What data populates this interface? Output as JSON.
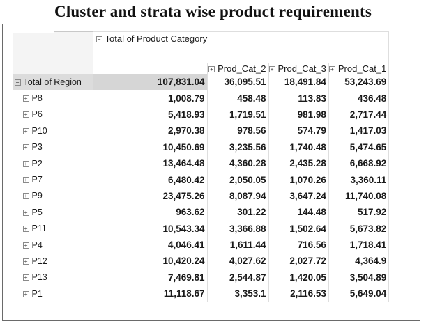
{
  "title": "Cluster and strata wise product requirements",
  "column_field": "Total of Product Category",
  "columns": [
    "Prod_Cat_2",
    "Prod_Cat_3",
    "Prod_Cat_1"
  ],
  "grand_row": {
    "label": "Total of Region",
    "total": "107,831.04",
    "values": [
      "36,095.51",
      "18,491.84",
      "53,243.69"
    ]
  },
  "rows": [
    {
      "label": "P8",
      "total": "1,008.79",
      "values": [
        "458.48",
        "113.83",
        "436.48"
      ]
    },
    {
      "label": "P6",
      "total": "5,418.93",
      "values": [
        "1,719.51",
        "981.98",
        "2,717.44"
      ]
    },
    {
      "label": "P10",
      "total": "2,970.38",
      "values": [
        "978.56",
        "574.79",
        "1,417.03"
      ]
    },
    {
      "label": "P3",
      "total": "10,450.69",
      "values": [
        "3,235.56",
        "1,740.48",
        "5,474.65"
      ]
    },
    {
      "label": "P2",
      "total": "13,464.48",
      "values": [
        "4,360.28",
        "2,435.28",
        "6,668.92"
      ]
    },
    {
      "label": "P7",
      "total": "6,480.42",
      "values": [
        "2,050.05",
        "1,070.26",
        "3,360.11"
      ]
    },
    {
      "label": "P9",
      "total": "23,475.26",
      "values": [
        "8,087.94",
        "3,647.24",
        "11,740.08"
      ]
    },
    {
      "label": "P5",
      "total": "963.62",
      "values": [
        "301.22",
        "144.48",
        "517.92"
      ]
    },
    {
      "label": "P11",
      "total": "10,543.34",
      "values": [
        "3,366.88",
        "1,502.64",
        "5,673.82"
      ]
    },
    {
      "label": "P4",
      "total": "4,046.41",
      "values": [
        "1,611.44",
        "716.56",
        "1,718.41"
      ]
    },
    {
      "label": "P12",
      "total": "10,420.24",
      "values": [
        "4,027.62",
        "2,027.72",
        "4,364.9"
      ]
    },
    {
      "label": "P13",
      "total": "7,469.81",
      "values": [
        "2,544.87",
        "1,420.05",
        "3,504.89"
      ]
    },
    {
      "label": "P1",
      "total": "11,118.67",
      "values": [
        "3,353.1",
        "2,116.53",
        "5,649.04"
      ]
    }
  ],
  "icons": {
    "collapse": "minus-box-icon",
    "expand": "plus-box-icon"
  }
}
